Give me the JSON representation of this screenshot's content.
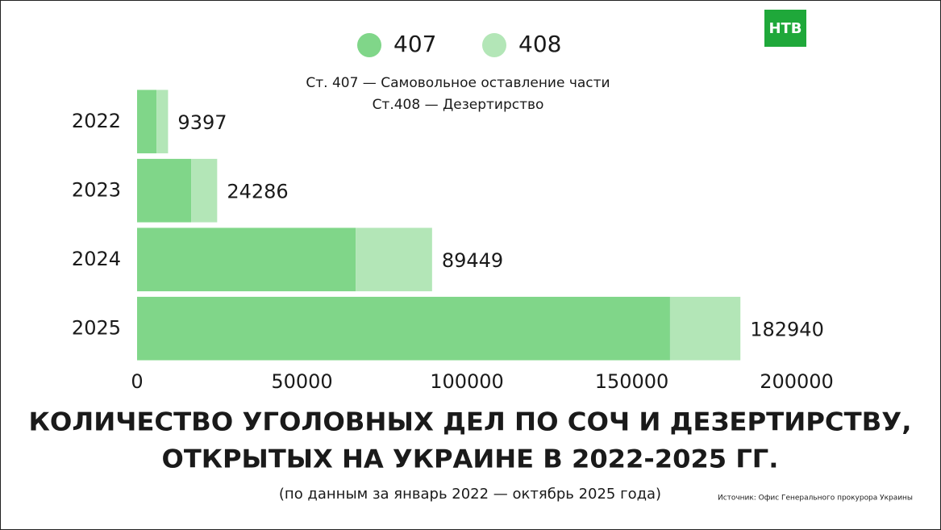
{
  "chart_data": {
    "type": "bar",
    "orientation": "horizontal",
    "stacked": true,
    "logo": "НТВ",
    "notes": [
      "Ст. 407 — Самовольное оставление части",
      "Ст.408 — Дезертирство"
    ],
    "title": [
      "КОЛИЧЕСТВО УГОЛОВНЫХ ДЕЛ ПО СОЧ И ДЕЗЕРТИРСТВУ,",
      "ОТКРЫТЫХ НА УКРАИНЕ В 2022-2025 ГГ."
    ],
    "subtitle": "(по данным за январь 2022 — октябрь 2025 года)",
    "source": "Источник: Офис Генерального прокурора Украины",
    "categories": [
      "2022",
      "2023",
      "2024",
      "2025"
    ],
    "series": [
      {
        "name": "407",
        "color": "#80d689",
        "values": [
          5900,
          16400,
          66300,
          161600
        ]
      },
      {
        "name": "408",
        "color": "#b3e6b7",
        "values": [
          3497,
          7886,
          23149,
          21340
        ]
      }
    ],
    "totals": [
      9397,
      24286,
      89449,
      182940
    ],
    "xlim": [
      0,
      200000
    ],
    "xticks": [
      0,
      50000,
      100000,
      150000,
      200000
    ],
    "grid": false
  }
}
